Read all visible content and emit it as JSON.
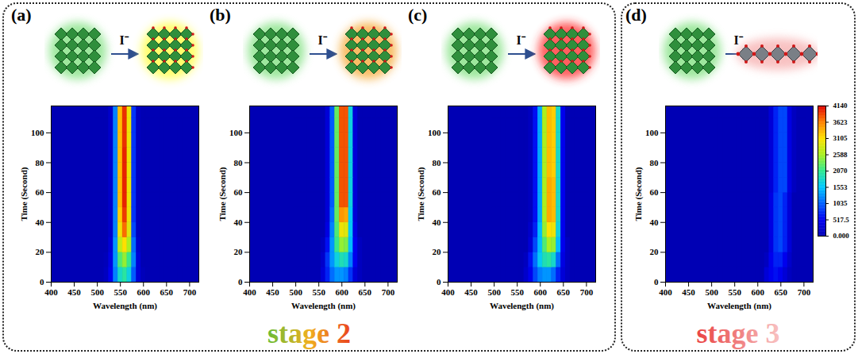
{
  "chart_data": [
    {
      "type": "heatmap",
      "panel_label": "(a)",
      "reagent": "I⁻",
      "x_label": "Wavelength (nm)",
      "y_label": "Time (Second)",
      "xlim": [
        400,
        720
      ],
      "xticks": [
        400,
        450,
        500,
        550,
        600,
        650,
        700
      ],
      "ylim": [
        0,
        118
      ],
      "yticks": [
        0,
        20,
        40,
        60,
        80,
        100
      ],
      "wavelengths": [
        500,
        510,
        520,
        530,
        540,
        550,
        560,
        570,
        580,
        590,
        600,
        610,
        620,
        630,
        640,
        650,
        660,
        670,
        680,
        690,
        700
      ],
      "times": [
        5,
        15,
        25,
        35,
        45,
        55,
        65,
        75,
        85,
        95,
        105,
        115
      ],
      "intensity": [
        [
          0,
          0,
          100,
          500,
          1200,
          1800,
          2000,
          1700,
          1000,
          300,
          50,
          0,
          0,
          0,
          0,
          0,
          0,
          0,
          0,
          0,
          0
        ],
        [
          0,
          0,
          50,
          400,
          1300,
          2200,
          2500,
          2100,
          1200,
          300,
          0,
          0,
          0,
          0,
          0,
          0,
          0,
          0,
          0,
          0,
          0
        ],
        [
          0,
          0,
          0,
          300,
          1300,
          2700,
          3100,
          2600,
          1100,
          200,
          0,
          0,
          0,
          0,
          0,
          0,
          0,
          0,
          0,
          0,
          0
        ],
        [
          0,
          0,
          0,
          200,
          1200,
          3000,
          3700,
          2900,
          900,
          100,
          0,
          0,
          0,
          0,
          0,
          0,
          0,
          0,
          0,
          0,
          0
        ],
        [
          0,
          0,
          0,
          200,
          1200,
          3200,
          3900,
          3000,
          800,
          100,
          0,
          0,
          0,
          0,
          0,
          0,
          0,
          0,
          0,
          0,
          0
        ],
        [
          0,
          0,
          0,
          200,
          1200,
          3300,
          4000,
          3000,
          800,
          100,
          0,
          0,
          0,
          0,
          0,
          0,
          0,
          0,
          0,
          0,
          0
        ],
        [
          0,
          0,
          0,
          200,
          1200,
          3300,
          4000,
          3000,
          800,
          100,
          0,
          0,
          0,
          0,
          0,
          0,
          0,
          0,
          0,
          0,
          0
        ],
        [
          0,
          0,
          0,
          200,
          1200,
          3300,
          4000,
          3000,
          800,
          100,
          0,
          0,
          0,
          0,
          0,
          0,
          0,
          0,
          0,
          0,
          0
        ],
        [
          0,
          0,
          0,
          200,
          1200,
          3300,
          4000,
          3000,
          800,
          100,
          0,
          0,
          0,
          0,
          0,
          0,
          0,
          0,
          0,
          0,
          0
        ],
        [
          0,
          0,
          0,
          200,
          1200,
          3300,
          3950,
          3000,
          800,
          100,
          0,
          0,
          0,
          0,
          0,
          0,
          0,
          0,
          0,
          0,
          0
        ],
        [
          0,
          0,
          0,
          200,
          1200,
          3300,
          3950,
          3000,
          800,
          100,
          0,
          0,
          0,
          0,
          0,
          0,
          0,
          0,
          0,
          0,
          0
        ],
        [
          0,
          0,
          0,
          200,
          1200,
          3300,
          3950,
          3000,
          800,
          100,
          0,
          0,
          0,
          0,
          0,
          0,
          0,
          0,
          0,
          0,
          0
        ]
      ]
    },
    {
      "type": "heatmap",
      "panel_label": "(b)",
      "reagent": "I⁻",
      "x_label": "Wavelength (nm)",
      "y_label": "Time (Second)",
      "xlim": [
        400,
        720
      ],
      "xticks": [
        400,
        450,
        500,
        550,
        600,
        650,
        700
      ],
      "ylim": [
        0,
        118
      ],
      "yticks": [
        0,
        20,
        40,
        60,
        80,
        100
      ],
      "wavelengths": [
        500,
        510,
        520,
        530,
        540,
        550,
        560,
        570,
        580,
        590,
        600,
        610,
        620,
        630,
        640,
        650,
        660,
        670,
        680,
        690,
        700
      ],
      "times": [
        5,
        15,
        25,
        35,
        45,
        55,
        65,
        75,
        85,
        95,
        105,
        115
      ],
      "intensity": [
        [
          0,
          0,
          0,
          0,
          0,
          0,
          300,
          700,
          1100,
          1300,
          1300,
          1200,
          800,
          300,
          100,
          0,
          0,
          0,
          0,
          0,
          0
        ],
        [
          0,
          0,
          0,
          0,
          0,
          0,
          200,
          800,
          1300,
          1700,
          1900,
          1800,
          1200,
          500,
          100,
          0,
          0,
          0,
          0,
          0,
          0
        ],
        [
          0,
          0,
          0,
          0,
          0,
          0,
          100,
          600,
          1300,
          2100,
          2500,
          2400,
          1500,
          500,
          100,
          0,
          0,
          0,
          0,
          0,
          0
        ],
        [
          0,
          0,
          0,
          0,
          0,
          0,
          0,
          400,
          1200,
          2200,
          3000,
          2900,
          1600,
          400,
          0,
          0,
          0,
          0,
          0,
          0,
          0
        ],
        [
          0,
          0,
          0,
          0,
          0,
          0,
          0,
          300,
          1100,
          2300,
          3500,
          3400,
          1600,
          300,
          0,
          0,
          0,
          0,
          0,
          0,
          0
        ],
        [
          0,
          0,
          0,
          0,
          0,
          0,
          0,
          300,
          1000,
          2300,
          3800,
          3800,
          1700,
          300,
          0,
          0,
          0,
          0,
          0,
          0,
          0
        ],
        [
          0,
          0,
          0,
          0,
          0,
          0,
          0,
          300,
          1000,
          2300,
          3800,
          3800,
          1700,
          300,
          0,
          0,
          0,
          0,
          0,
          0,
          0
        ],
        [
          0,
          0,
          0,
          0,
          0,
          0,
          0,
          300,
          1000,
          2300,
          3800,
          3800,
          1700,
          300,
          0,
          0,
          0,
          0,
          0,
          0,
          0
        ],
        [
          0,
          0,
          0,
          0,
          0,
          0,
          0,
          300,
          1000,
          2300,
          3800,
          3800,
          1700,
          300,
          0,
          0,
          0,
          0,
          0,
          0,
          0
        ],
        [
          0,
          0,
          0,
          0,
          0,
          0,
          0,
          300,
          1000,
          2300,
          3800,
          3800,
          1700,
          300,
          0,
          0,
          0,
          0,
          0,
          0,
          0
        ],
        [
          0,
          0,
          0,
          0,
          0,
          0,
          0,
          300,
          1000,
          2300,
          3800,
          3800,
          1700,
          300,
          0,
          0,
          0,
          0,
          0,
          0,
          0
        ],
        [
          0,
          0,
          0,
          0,
          0,
          0,
          0,
          300,
          1000,
          2300,
          3800,
          3800,
          1700,
          300,
          0,
          0,
          0,
          0,
          0,
          0,
          0
        ]
      ]
    },
    {
      "type": "heatmap",
      "panel_label": "(c)",
      "reagent": "I⁻",
      "x_label": "Wavelength (nm)",
      "y_label": "Time (Second)",
      "xlim": [
        400,
        720
      ],
      "xticks": [
        400,
        450,
        500,
        550,
        600,
        650,
        700
      ],
      "ylim": [
        0,
        118
      ],
      "yticks": [
        0,
        20,
        40,
        60,
        80,
        100
      ],
      "wavelengths": [
        500,
        510,
        520,
        530,
        540,
        550,
        560,
        570,
        580,
        590,
        600,
        610,
        620,
        630,
        640,
        650,
        660,
        670,
        680,
        690,
        700
      ],
      "times": [
        5,
        15,
        25,
        35,
        45,
        55,
        65,
        75,
        85,
        95,
        105,
        115
      ],
      "intensity": [
        [
          0,
          0,
          0,
          0,
          0,
          0,
          0,
          200,
          500,
          900,
          1200,
          1300,
          1300,
          1100,
          700,
          300,
          100,
          0,
          0,
          0,
          0
        ],
        [
          0,
          0,
          0,
          0,
          0,
          0,
          0,
          100,
          600,
          1100,
          1600,
          1900,
          2000,
          1800,
          1100,
          400,
          100,
          0,
          0,
          0,
          0
        ],
        [
          0,
          0,
          0,
          0,
          0,
          0,
          0,
          0,
          300,
          900,
          1500,
          2200,
          2600,
          2500,
          1500,
          500,
          100,
          0,
          0,
          0,
          0
        ],
        [
          0,
          0,
          0,
          0,
          0,
          0,
          0,
          0,
          200,
          700,
          1500,
          2500,
          3100,
          3000,
          1700,
          500,
          0,
          0,
          0,
          0,
          0
        ],
        [
          0,
          0,
          0,
          0,
          0,
          0,
          0,
          0,
          100,
          600,
          1400,
          2600,
          3400,
          3300,
          1800,
          500,
          0,
          0,
          0,
          0,
          0
        ],
        [
          0,
          0,
          0,
          0,
          0,
          0,
          0,
          0,
          100,
          600,
          1400,
          2600,
          3400,
          3300,
          1800,
          500,
          0,
          0,
          0,
          0,
          0
        ],
        [
          0,
          0,
          0,
          0,
          0,
          0,
          0,
          0,
          100,
          600,
          1400,
          2600,
          3400,
          3300,
          1800,
          500,
          0,
          0,
          0,
          0,
          0
        ],
        [
          0,
          0,
          0,
          0,
          0,
          0,
          0,
          0,
          100,
          600,
          1400,
          2600,
          3300,
          3200,
          1800,
          500,
          0,
          0,
          0,
          0,
          0
        ],
        [
          0,
          0,
          0,
          0,
          0,
          0,
          0,
          0,
          100,
          600,
          1400,
          2600,
          3300,
          3200,
          1800,
          500,
          0,
          0,
          0,
          0,
          0
        ],
        [
          0,
          0,
          0,
          0,
          0,
          0,
          0,
          0,
          100,
          600,
          1400,
          2600,
          3300,
          3200,
          1800,
          500,
          0,
          0,
          0,
          0,
          0
        ],
        [
          0,
          0,
          0,
          0,
          0,
          0,
          0,
          0,
          100,
          600,
          1400,
          2600,
          3300,
          3200,
          1800,
          500,
          0,
          0,
          0,
          0,
          0
        ],
        [
          0,
          0,
          0,
          0,
          0,
          0,
          0,
          0,
          100,
          600,
          1400,
          2600,
          3300,
          3200,
          1800,
          500,
          0,
          0,
          0,
          0,
          0
        ]
      ]
    },
    {
      "type": "heatmap",
      "panel_label": "(d)",
      "reagent": "I⁻",
      "x_label": "Wavelength (nm)",
      "y_label": "Time (Second)",
      "xlim": [
        400,
        720
      ],
      "xticks": [
        400,
        450,
        500,
        550,
        600,
        650,
        700
      ],
      "ylim": [
        0,
        118
      ],
      "yticks": [
        0,
        20,
        40,
        60,
        80,
        100
      ],
      "wavelengths": [
        500,
        510,
        520,
        530,
        540,
        550,
        560,
        570,
        580,
        590,
        600,
        610,
        620,
        630,
        640,
        650,
        660,
        670,
        680,
        690,
        700
      ],
      "times": [
        5,
        15,
        25,
        35,
        45,
        55,
        65,
        75,
        85,
        95,
        105,
        115
      ],
      "intensity": [
        [
          0,
          0,
          0,
          0,
          0,
          0,
          0,
          0,
          0,
          0,
          0,
          0,
          300,
          500,
          600,
          500,
          300,
          100,
          0,
          0,
          0
        ],
        [
          0,
          0,
          0,
          0,
          0,
          0,
          0,
          0,
          0,
          0,
          0,
          0,
          100,
          500,
          700,
          700,
          500,
          200,
          0,
          0,
          0
        ],
        [
          0,
          0,
          0,
          0,
          0,
          0,
          0,
          0,
          0,
          0,
          0,
          0,
          0,
          400,
          800,
          900,
          700,
          300,
          0,
          0,
          0
        ],
        [
          0,
          0,
          0,
          0,
          0,
          0,
          0,
          0,
          0,
          0,
          0,
          0,
          0,
          400,
          800,
          900,
          700,
          300,
          0,
          0,
          0
        ],
        [
          0,
          0,
          0,
          0,
          0,
          0,
          0,
          0,
          0,
          0,
          0,
          0,
          0,
          400,
          800,
          900,
          700,
          300,
          0,
          0,
          0
        ],
        [
          0,
          0,
          0,
          0,
          0,
          0,
          0,
          0,
          0,
          0,
          0,
          0,
          0,
          400,
          800,
          900,
          700,
          300,
          0,
          0,
          0
        ],
        [
          0,
          0,
          0,
          0,
          0,
          0,
          0,
          0,
          0,
          0,
          0,
          0,
          0,
          300,
          700,
          900,
          900,
          400,
          100,
          0,
          0
        ],
        [
          0,
          0,
          0,
          0,
          0,
          0,
          0,
          0,
          0,
          0,
          0,
          0,
          0,
          300,
          700,
          900,
          900,
          400,
          100,
          0,
          0
        ],
        [
          0,
          0,
          0,
          0,
          0,
          0,
          0,
          0,
          0,
          0,
          0,
          0,
          0,
          300,
          700,
          900,
          900,
          400,
          100,
          0,
          0
        ],
        [
          0,
          0,
          0,
          0,
          0,
          0,
          0,
          0,
          0,
          0,
          0,
          0,
          0,
          300,
          700,
          900,
          900,
          400,
          100,
          0,
          0
        ],
        [
          0,
          0,
          0,
          0,
          0,
          0,
          0,
          0,
          0,
          0,
          0,
          0,
          0,
          300,
          700,
          900,
          900,
          400,
          100,
          0,
          0
        ],
        [
          0,
          0,
          0,
          0,
          0,
          0,
          0,
          0,
          0,
          0,
          0,
          0,
          0,
          300,
          700,
          900,
          900,
          400,
          100,
          0,
          0
        ]
      ]
    }
  ],
  "colorbar": {
    "range": [
      0,
      4140
    ],
    "ticks": [
      {
        "value": 0,
        "label": "0.000"
      },
      517.5,
      1035,
      {
        "value": 1552.5,
        "label": "1553"
      },
      2070,
      {
        "value": 2587.5,
        "label": "2588"
      },
      3105,
      {
        "value": 3622.5,
        "label": "3623"
      },
      4140
    ]
  },
  "groups": [
    {
      "label": "stage 2",
      "panels": [
        "(a)",
        "(b)",
        "(c)"
      ]
    },
    {
      "label": "stage 3",
      "panels": [
        "(d)"
      ]
    }
  ]
}
